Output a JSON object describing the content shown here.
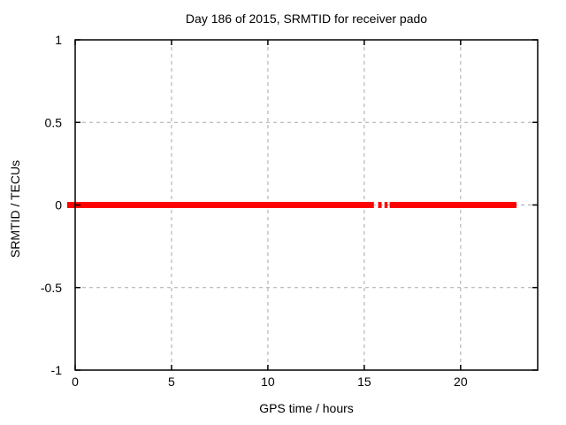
{
  "figure": {
    "background": "#ffffff",
    "border_color": "#000000",
    "text_color": "#000000"
  },
  "chart_data": {
    "type": "line",
    "title": "Day 186 of 2015, SRMTID for receiver pado",
    "xlabel": "GPS time / hours",
    "ylabel": "SRMTID / TECUs",
    "xlim": [
      0,
      24
    ],
    "ylim": [
      -1,
      1
    ],
    "x_ticks": [
      0,
      5,
      10,
      15,
      20
    ],
    "x_tick_labels": [
      "0",
      "5",
      "10",
      "15",
      "20"
    ],
    "y_ticks": [
      -1,
      -0.5,
      0,
      0.5,
      1
    ],
    "y_tick_labels": [
      "-1",
      "-0.5",
      "0",
      "0.5",
      "1"
    ],
    "grid": true,
    "grid_color": "#a8a8a8",
    "legend_position": "none",
    "series": [
      {
        "name": "SRMTID",
        "color": "#ff0000",
        "linewidth": 7,
        "y_value": 0,
        "segments_hours": [
          [
            0,
            15.5
          ],
          [
            15.72,
            15.9
          ],
          [
            16.05,
            16.21
          ],
          [
            16.32,
            22.9
          ]
        ]
      }
    ]
  }
}
